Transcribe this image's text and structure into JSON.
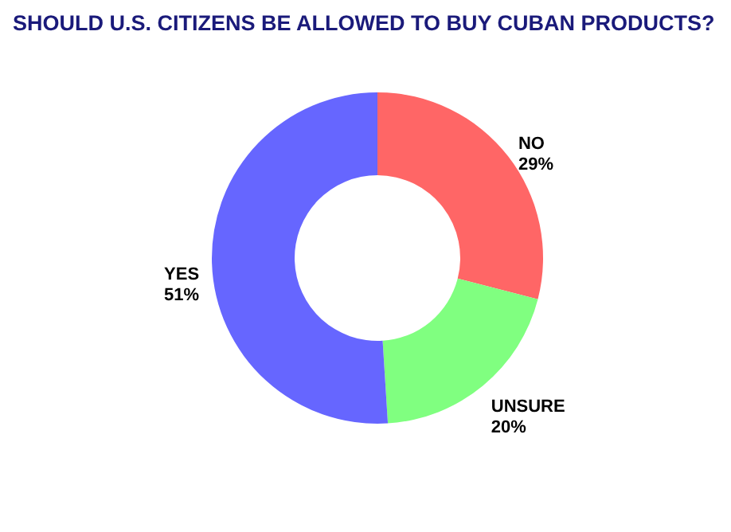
{
  "chart_data": {
    "type": "donut",
    "title": "SHOULD U.S. CITIZENS BE ALLOWED TO BUY CUBAN PRODUCTS?",
    "categories": [
      "NO",
      "UNSURE",
      "YES"
    ],
    "values": [
      29,
      20,
      51
    ],
    "value_labels": [
      "29%",
      "20%",
      "51%"
    ],
    "colors": [
      "#ff6666",
      "#80ff80",
      "#6666ff"
    ],
    "legend": false
  }
}
